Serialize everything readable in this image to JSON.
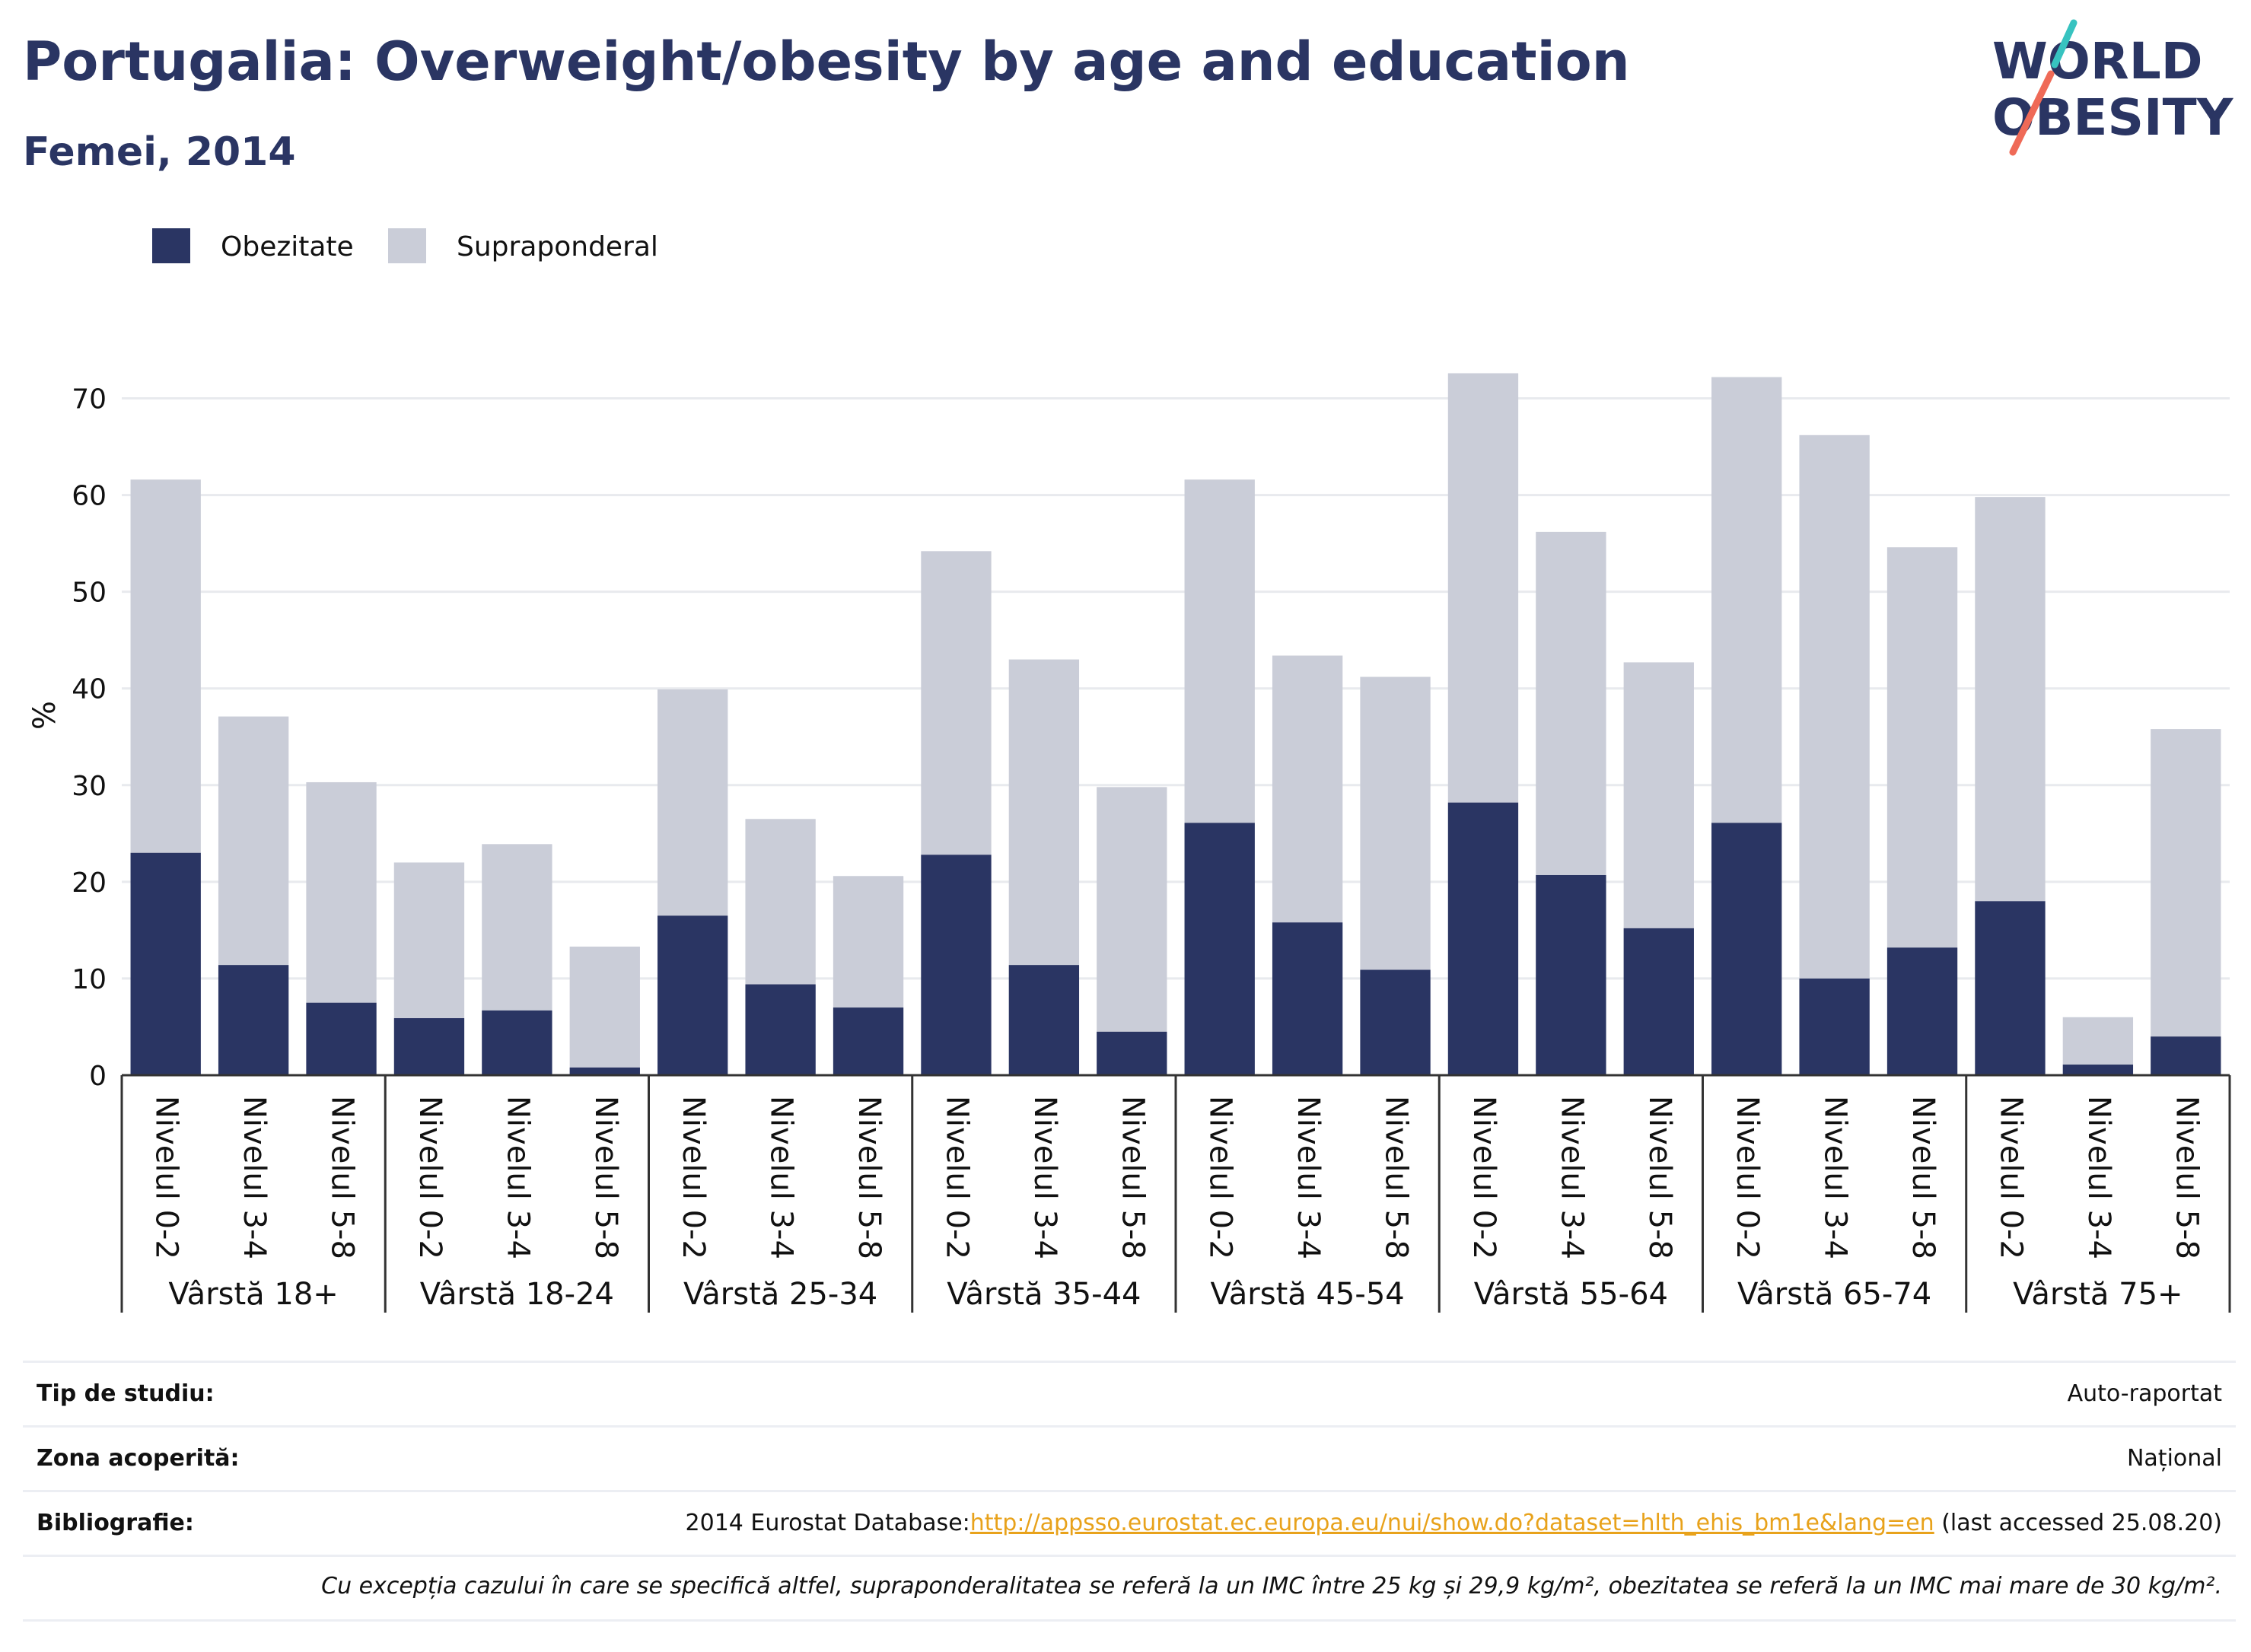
{
  "header": {
    "title": "Portugalia: Overweight/obesity by age and education",
    "subtitle": "Femei, 2014"
  },
  "logo": {
    "line1": "WORLD",
    "line2": "OBESITY"
  },
  "colors": {
    "obesity": "#2a3563",
    "overweight": "#cacdd8",
    "grid": "#e8eaee",
    "text": "#111111"
  },
  "chart_data": {
    "type": "bar",
    "stacked": true,
    "ylabel": "%",
    "ylim": [
      0,
      75
    ],
    "yticks": [
      0,
      10,
      20,
      30,
      40,
      50,
      60,
      70
    ],
    "grid": true,
    "legend_position": "top-left",
    "groups": [
      "Vârstă 18+",
      "Vârstă 18-24",
      "Vârstă 25-34",
      "Vârstă 35-44",
      "Vârstă 45-54",
      "Vârstă 55-64",
      "Vârstă 65-74",
      "Vârstă 75+"
    ],
    "levels": [
      "Nivelul 0-2",
      "Nivelul 3-4",
      "Nivelul 5-8"
    ],
    "series": [
      {
        "name": "Obezitate",
        "values": [
          23.0,
          11.4,
          7.5,
          5.9,
          6.7,
          0.8,
          16.5,
          9.4,
          7.0,
          22.8,
          11.4,
          4.5,
          26.1,
          15.8,
          10.9,
          28.2,
          20.7,
          15.2,
          26.1,
          10.0,
          13.2,
          18.0,
          1.1,
          4.0
        ]
      },
      {
        "name": "Supraponderal",
        "values": [
          38.6,
          25.7,
          22.8,
          16.1,
          17.2,
          12.5,
          23.4,
          17.1,
          13.6,
          31.4,
          31.6,
          25.3,
          35.5,
          27.6,
          30.3,
          44.4,
          35.5,
          27.5,
          46.1,
          56.2,
          41.4,
          41.8,
          4.9,
          31.8
        ]
      }
    ]
  },
  "info": {
    "study_type_label": "Tip de studiu:",
    "study_type_value": "Auto-raportat",
    "coverage_label": "Zona acoperită:",
    "coverage_value": "Național",
    "bibliography_label": "Bibliografie:",
    "bibliography_prefix": "2014 Eurostat Database:",
    "bibliography_link": "http://appsso.eurostat.ec.europa.eu/nui/show.do?dataset=hlth_ehis_bm1e&lang=en",
    "bibliography_suffix": " (last accessed 25.08.20)",
    "note": "Cu excepția cazului în care se specifică altfel, supraponderalitatea se referă la un IMC între 25 kg și 29,9 kg/m², obezitatea se referă la un IMC mai mare de 30 kg/m²."
  }
}
